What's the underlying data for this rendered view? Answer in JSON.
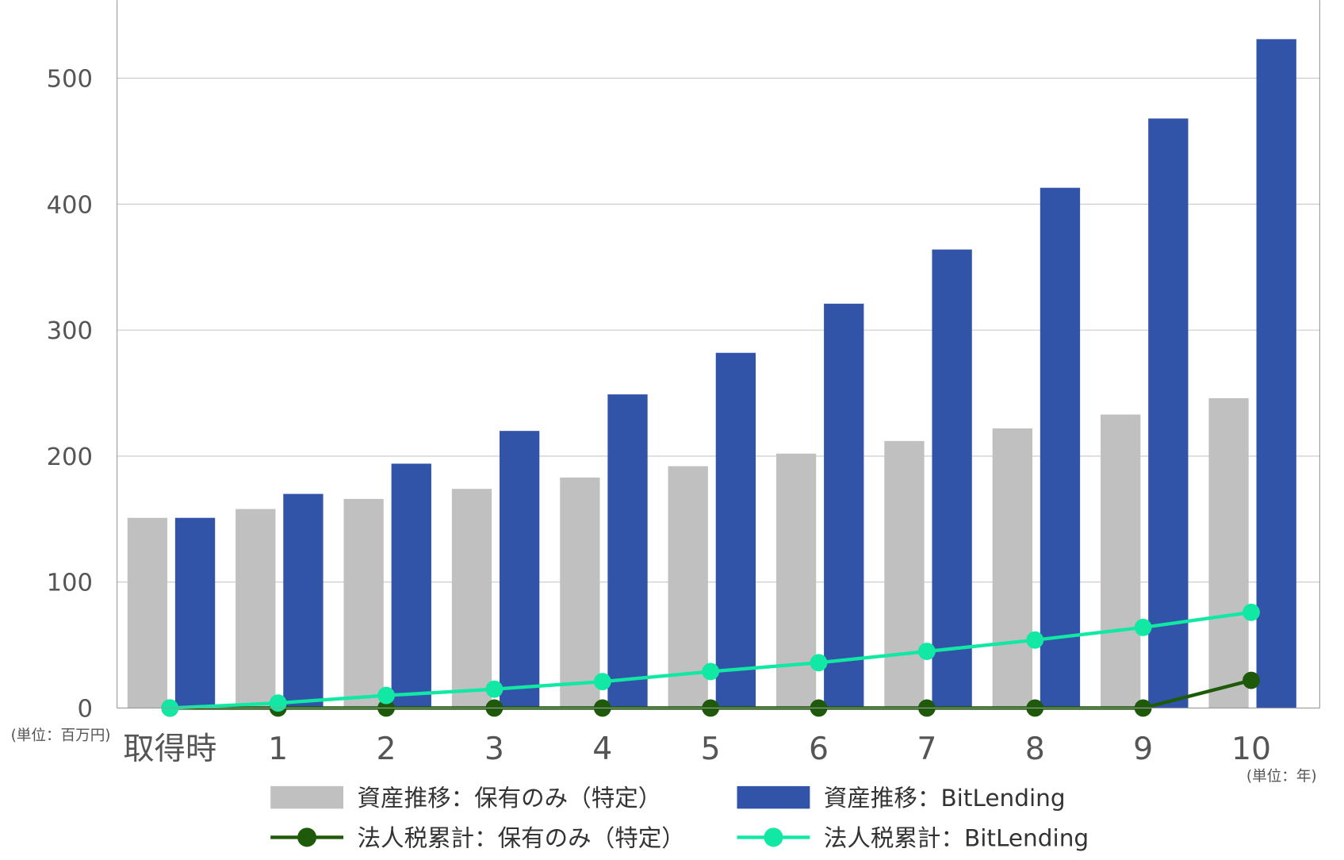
{
  "chart_data": {
    "type": "bar",
    "categories": [
      "取得時",
      "1",
      "2",
      "3",
      "4",
      "5",
      "6",
      "7",
      "8",
      "9",
      "10"
    ],
    "ylim": [
      0,
      550
    ],
    "yticks": [
      0,
      100,
      200,
      300,
      400,
      500
    ],
    "grid": true,
    "y_unit_label": "(単位：百万円)",
    "x_unit_label": "(単位：年)",
    "legend_placement": "bottom",
    "series": [
      {
        "name": "資産推移：保有のみ（特定）",
        "kind": "bar",
        "color": "#c0c0c0",
        "values": [
          151,
          158,
          166,
          174,
          183,
          192,
          202,
          212,
          222,
          233,
          246
        ]
      },
      {
        "name": "資産推移：BitLending",
        "kind": "bar",
        "color": "#3154a8",
        "values": [
          151,
          170,
          194,
          220,
          249,
          282,
          321,
          364,
          413,
          468,
          531
        ]
      },
      {
        "name": "法人税累計：保有のみ（特定）",
        "kind": "line",
        "color": "#1e5a0a",
        "values": [
          0,
          0,
          0,
          0,
          0,
          0,
          0,
          0,
          0,
          0,
          22
        ]
      },
      {
        "name": "法人税累計：BitLending",
        "kind": "line",
        "color": "#10e8a4",
        "values": [
          0,
          4,
          10,
          15,
          21,
          29,
          36,
          45,
          54,
          64,
          76
        ]
      }
    ]
  }
}
